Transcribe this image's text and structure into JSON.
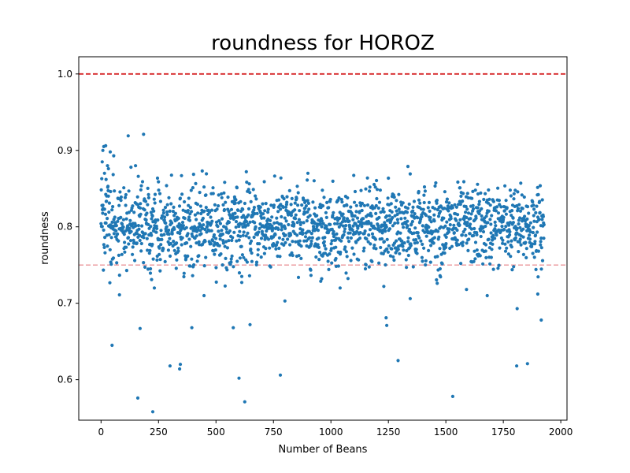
{
  "chart_data": {
    "type": "scatter",
    "title": "roundness for HOROZ",
    "xlabel": "Number of Beans",
    "ylabel": "roundness",
    "xlim": [
      -97,
      2027
    ],
    "ylim": [
      0.547,
      1.0225
    ],
    "xticks": [
      0,
      250,
      500,
      750,
      1000,
      1250,
      1500,
      1750,
      2000
    ],
    "yticks": [
      0.6,
      0.7,
      0.8,
      0.9,
      1.0
    ],
    "xtick_labels": [
      "0",
      "250",
      "500",
      "750",
      "1000",
      "1250",
      "1500",
      "1750",
      "2000"
    ],
    "ytick_labels": [
      "0.6",
      "0.7",
      "0.8",
      "0.9",
      "1.0"
    ],
    "grid": false,
    "point_color": "#1f77b4",
    "n_points": 1928,
    "bulk_center": 0.8,
    "bulk_spread": 0.025,
    "reference_lines": [
      {
        "y": 1.0,
        "color": "#d62728",
        "style": "dashed",
        "opacity": 1.0
      },
      {
        "y": 0.75,
        "color": "#e8858a",
        "style": "dashed",
        "opacity": 0.85
      }
    ],
    "series": [
      {
        "points": [
          [
            5,
            0.885
          ],
          [
            8,
            0.9
          ],
          [
            12,
            0.905
          ],
          [
            20,
            0.906
          ],
          [
            28,
            0.88
          ],
          [
            32,
            0.876
          ],
          [
            40,
            0.898
          ],
          [
            55,
            0.893
          ],
          [
            15,
            0.87
          ],
          [
            22,
            0.862
          ],
          [
            48,
            0.645
          ],
          [
            80,
            0.711
          ],
          [
            118,
            0.919
          ],
          [
            185,
            0.921
          ],
          [
            130,
            0.878
          ],
          [
            150,
            0.88
          ],
          [
            160,
            0.576
          ],
          [
            170,
            0.667
          ],
          [
            225,
            0.558
          ],
          [
            215,
            0.745
          ],
          [
            220,
            0.731
          ],
          [
            232,
            0.72
          ],
          [
            300,
            0.618
          ],
          [
            345,
            0.62
          ],
          [
            342,
            0.614
          ],
          [
            350,
            0.867
          ],
          [
            395,
            0.668
          ],
          [
            440,
            0.873
          ],
          [
            448,
            0.71
          ],
          [
            575,
            0.668
          ],
          [
            600,
            0.602
          ],
          [
            612,
            0.735
          ],
          [
            625,
            0.571
          ],
          [
            632,
            0.872
          ],
          [
            648,
            0.672
          ],
          [
            710,
            0.859
          ],
          [
            780,
            0.606
          ],
          [
            800,
            0.703
          ],
          [
            900,
            0.87
          ],
          [
            1240,
            0.681
          ],
          [
            1243,
            0.671
          ],
          [
            1292,
            0.625
          ],
          [
            1335,
            0.879
          ],
          [
            1345,
            0.706
          ],
          [
            1530,
            0.578
          ],
          [
            1560,
            0.851
          ],
          [
            1680,
            0.71
          ],
          [
            1810,
            0.693
          ],
          [
            1808,
            0.618
          ],
          [
            1855,
            0.621
          ],
          [
            1900,
            0.712
          ],
          [
            1915,
            0.678
          ],
          [
            1780,
            0.848
          ],
          [
            1640,
            0.843
          ],
          [
            1040,
            0.72
          ],
          [
            1150,
            0.745
          ],
          [
            1475,
            0.745
          ],
          [
            1590,
            0.718
          ],
          [
            1230,
            0.722
          ],
          [
            960,
            0.732
          ]
        ]
      }
    ]
  }
}
